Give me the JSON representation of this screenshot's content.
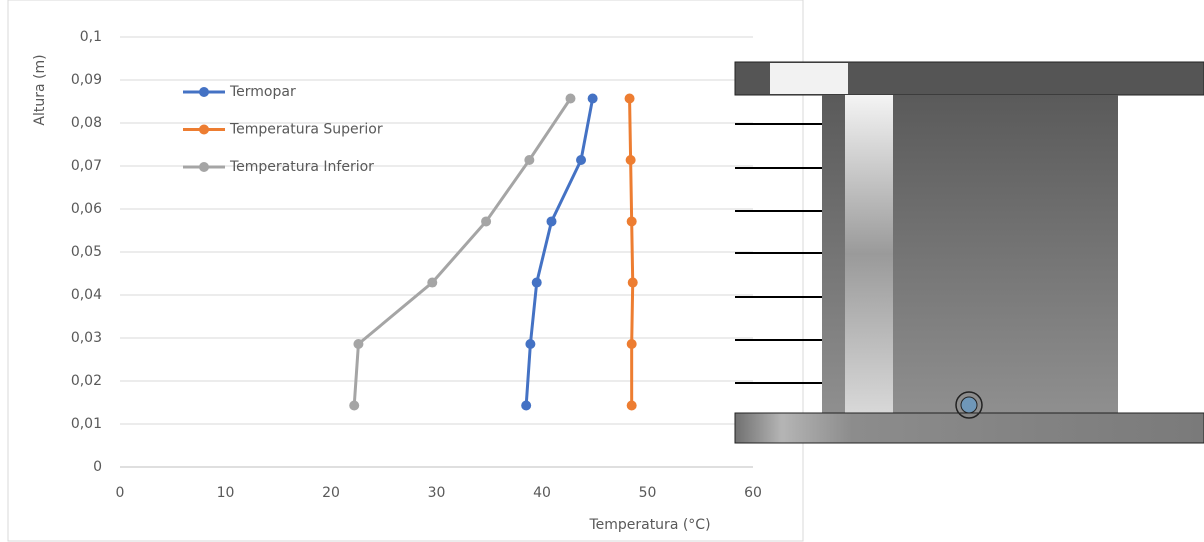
{
  "chart_data": {
    "type": "line",
    "x_label": "Temperatura (°C)",
    "y_label": "Altura (m)",
    "xlim": [
      0,
      60
    ],
    "xticks": [
      0,
      10,
      20,
      30,
      40,
      50,
      60
    ],
    "ylim": [
      0,
      0.1
    ],
    "yticks": [
      0,
      {
        "value": 0.01,
        "label": "0,01"
      },
      {
        "value": 0.02,
        "label": "0,02"
      },
      {
        "value": 0.03,
        "label": "0,03"
      },
      {
        "value": 0.04,
        "label": "0,04"
      },
      {
        "value": 0.05,
        "label": "0,05"
      },
      {
        "value": 0.06,
        "label": "0,06"
      },
      {
        "value": 0.07,
        "label": "0,07"
      },
      {
        "value": 0.08,
        "label": "0,08"
      },
      {
        "value": 0.09,
        "label": "0,09"
      },
      {
        "value": 0.1,
        "label": "0,1"
      }
    ],
    "grid": true,
    "legend": "top-left",
    "series": [
      {
        "name": "Termopar",
        "color": "#4472c4",
        "x": [
          38.5,
          38.9,
          39.5,
          40.9,
          43.7,
          44.8
        ],
        "values": [
          0.0143,
          0.0286,
          0.0429,
          0.0571,
          0.0714,
          0.0857
        ]
      },
      {
        "name": "Temperatura Superior",
        "color": "#ed7d31",
        "x": [
          48.5,
          48.5,
          48.6,
          48.5,
          48.4,
          48.3
        ],
        "values": [
          0.0143,
          0.0286,
          0.0429,
          0.0571,
          0.0714,
          0.0857
        ]
      },
      {
        "name": "Temperatura Inferior",
        "color": "#a5a5a5",
        "x": [
          22.2,
          22.6,
          29.6,
          34.7,
          38.8,
          42.7
        ],
        "values": [
          0.0143,
          0.0286,
          0.0429,
          0.0571,
          0.0714,
          0.0857
        ]
      }
    ]
  }
}
